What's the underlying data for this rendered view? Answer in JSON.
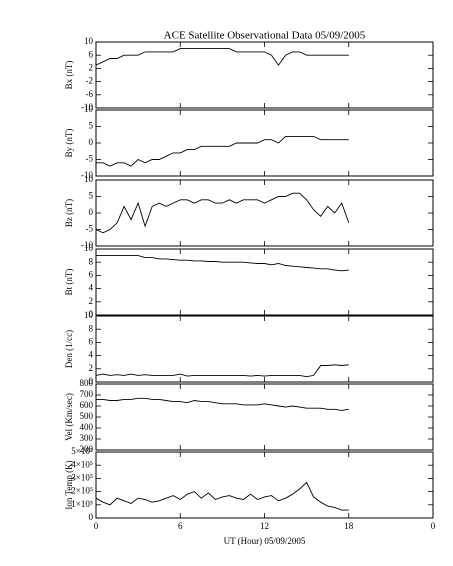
{
  "chart_data": [
    {
      "type": "line",
      "title": "ACE Satellite Observational Data   05/09/2005",
      "ylabel": "Bx (nT)",
      "color": "#000000",
      "x": [
        0,
        0.5,
        1,
        1.5,
        2,
        2.5,
        3,
        3.5,
        4,
        4.5,
        5,
        5.5,
        6,
        6.5,
        7,
        7.5,
        8,
        8.5,
        9,
        9.5,
        10,
        10.5,
        11,
        11.5,
        12,
        12.5,
        13,
        13.5,
        14,
        14.5,
        15,
        15.5,
        16,
        16.5,
        17,
        17.5,
        18
      ],
      "values": [
        3,
        4,
        5,
        5,
        6,
        6,
        6,
        7,
        7,
        7,
        7,
        7,
        8,
        8,
        8,
        8,
        8,
        8,
        8,
        8,
        7,
        7,
        7,
        7,
        7,
        6,
        3,
        6,
        7,
        7,
        6,
        6,
        6,
        6,
        6,
        6,
        6
      ],
      "xlim": [
        0,
        24
      ],
      "ylim": [
        -10,
        10
      ],
      "yticks": [
        -10,
        -6,
        -2,
        2,
        6,
        10
      ]
    },
    {
      "type": "line",
      "ylabel": "By (nT)",
      "color": "#000000",
      "x": [
        0,
        0.5,
        1,
        1.5,
        2,
        2.5,
        3,
        3.5,
        4,
        4.5,
        5,
        5.5,
        6,
        6.5,
        7,
        7.5,
        8,
        8.5,
        9,
        9.5,
        10,
        10.5,
        11,
        11.5,
        12,
        12.5,
        13,
        13.5,
        14,
        14.5,
        15,
        15.5,
        16,
        16.5,
        17,
        17.5,
        18
      ],
      "values": [
        -6,
        -6,
        -7,
        -6,
        -6,
        -7,
        -5,
        -6,
        -5,
        -5,
        -4,
        -3,
        -3,
        -2,
        -2,
        -1,
        -1,
        -1,
        -1,
        -1,
        0,
        0,
        0,
        0,
        1,
        1,
        0,
        2,
        2,
        2,
        2,
        2,
        1,
        1,
        1,
        1,
        1
      ],
      "xlim": [
        0,
        24
      ],
      "ylim": [
        -10,
        10
      ],
      "yticks": [
        -10,
        -5,
        0,
        5,
        10
      ]
    },
    {
      "type": "line",
      "ylabel": "Bz (nT)",
      "color": "#000000",
      "x": [
        0,
        0.5,
        1,
        1.5,
        2,
        2.5,
        3,
        3.5,
        4,
        4.5,
        5,
        5.5,
        6,
        6.5,
        7,
        7.5,
        8,
        8.5,
        9,
        9.5,
        10,
        10.5,
        11,
        11.5,
        12,
        12.5,
        13,
        13.5,
        14,
        14.5,
        15,
        15.5,
        16,
        16.5,
        17,
        17.5,
        18
      ],
      "values": [
        -5,
        -6,
        -5,
        -3,
        2,
        -2,
        3,
        -4,
        2,
        3,
        2,
        3,
        4,
        4,
        3,
        4,
        4,
        3,
        3,
        4,
        3,
        4,
        4,
        4,
        3,
        4,
        5,
        5,
        6,
        6,
        4,
        1,
        -1,
        2,
        0,
        3,
        -3
      ],
      "xlim": [
        0,
        24
      ],
      "ylim": [
        -10,
        10
      ],
      "yticks": [
        -10,
        -5,
        0,
        5,
        10
      ]
    },
    {
      "type": "line",
      "ylabel": "Bt (nT)",
      "color": "#000000",
      "x": [
        0,
        0.5,
        1,
        1.5,
        2,
        2.5,
        3,
        3.5,
        4,
        4.5,
        5,
        5.5,
        6,
        6.5,
        7,
        7.5,
        8,
        8.5,
        9,
        9.5,
        10,
        10.5,
        11,
        11.5,
        12,
        12.5,
        13,
        13.5,
        14,
        14.5,
        15,
        15.5,
        16,
        16.5,
        17,
        17.5,
        18
      ],
      "values": [
        9,
        9,
        9,
        9,
        9,
        9,
        9,
        8.7,
        8.7,
        8.5,
        8.5,
        8.4,
        8.3,
        8.3,
        8.2,
        8.2,
        8.1,
        8.1,
        8,
        8,
        8,
        8,
        7.9,
        7.8,
        7.8,
        7.6,
        7.8,
        7.5,
        7.4,
        7.3,
        7.2,
        7.1,
        7,
        7,
        6.8,
        6.7,
        6.8
      ],
      "xlim": [
        0,
        24
      ],
      "ylim": [
        0,
        10
      ],
      "yticks": [
        0,
        2,
        4,
        6,
        8,
        10
      ]
    },
    {
      "type": "line",
      "ylabel": "Den (1/cc)",
      "color": "#000000",
      "x": [
        0,
        0.5,
        1,
        1.5,
        2,
        2.5,
        3,
        3.5,
        4,
        4.5,
        5,
        5.5,
        6,
        6.5,
        7,
        7.5,
        8,
        8.5,
        9,
        9.5,
        10,
        10.5,
        11,
        11.5,
        12,
        12.5,
        13,
        13.5,
        14,
        14.5,
        15,
        15.5,
        16,
        16.5,
        17,
        17.5,
        18
      ],
      "values": [
        1,
        1.2,
        1,
        1.1,
        1,
        1.2,
        1,
        1.1,
        1,
        1,
        1,
        1,
        1.2,
        0.9,
        1,
        1,
        1,
        1,
        1,
        1,
        1,
        1,
        0.9,
        1,
        0.9,
        1,
        1,
        1,
        1,
        1,
        0.8,
        1,
        2.5,
        2.5,
        2.6,
        2.5,
        2.6
      ],
      "xlim": [
        0,
        24
      ],
      "ylim": [
        0,
        10
      ],
      "yticks": [
        0,
        2,
        4,
        6,
        8,
        10
      ]
    },
    {
      "type": "line",
      "ylabel": "Vel (Km/sec)",
      "color": "#000000",
      "x": [
        0,
        0.5,
        1,
        1.5,
        2,
        2.5,
        3,
        3.5,
        4,
        4.5,
        5,
        5.5,
        6,
        6.5,
        7,
        7.5,
        8,
        8.5,
        9,
        9.5,
        10,
        10.5,
        11,
        11.5,
        12,
        12.5,
        13,
        13.5,
        14,
        14.5,
        15,
        15.5,
        16,
        16.5,
        17,
        17.5,
        18
      ],
      "values": [
        660,
        660,
        650,
        650,
        660,
        660,
        670,
        670,
        660,
        660,
        650,
        640,
        640,
        630,
        650,
        640,
        640,
        630,
        620,
        620,
        620,
        610,
        610,
        610,
        620,
        610,
        600,
        590,
        600,
        590,
        580,
        580,
        580,
        570,
        570,
        560,
        570
      ],
      "xlim": [
        0,
        24
      ],
      "ylim": [
        200,
        800
      ],
      "yticks": [
        200,
        300,
        400,
        500,
        600,
        700,
        800
      ]
    },
    {
      "type": "line",
      "ylabel": "Ion Temp (K)",
      "xlabel": "UT (Hour)   05/09/2005",
      "color": "#000000",
      "x": [
        0,
        0.5,
        1,
        1.5,
        2,
        2.5,
        3,
        3.5,
        4,
        4.5,
        5,
        5.5,
        6,
        6.5,
        7,
        7.5,
        8,
        8.5,
        9,
        9.5,
        10,
        10.5,
        11,
        11.5,
        12,
        12.5,
        13,
        13.5,
        14,
        14.5,
        15,
        15.5,
        16,
        16.5,
        17,
        17.5,
        18
      ],
      "values": [
        150000,
        120000,
        100000,
        150000,
        130000,
        110000,
        150000,
        140000,
        120000,
        130000,
        150000,
        170000,
        140000,
        180000,
        200000,
        150000,
        190000,
        140000,
        160000,
        170000,
        150000,
        140000,
        180000,
        140000,
        160000,
        170000,
        130000,
        150000,
        180000,
        220000,
        270000,
        160000,
        120000,
        90000,
        80000,
        60000,
        60000
      ],
      "xlim": [
        0,
        24
      ],
      "ylim": [
        0,
        500000
      ],
      "yticks": [
        0,
        {
          "value": 100000,
          "label": "1×10⁵"
        },
        {
          "value": 200000,
          "label": "2×10⁵"
        },
        {
          "value": 300000,
          "label": "3×10⁵"
        },
        {
          "value": 400000,
          "label": "4×10⁵"
        },
        {
          "value": 500000,
          "label": "5×10⁵"
        }
      ],
      "xticks": [
        0,
        6,
        12,
        18,
        {
          "value": 24,
          "label": "0"
        }
      ]
    }
  ]
}
